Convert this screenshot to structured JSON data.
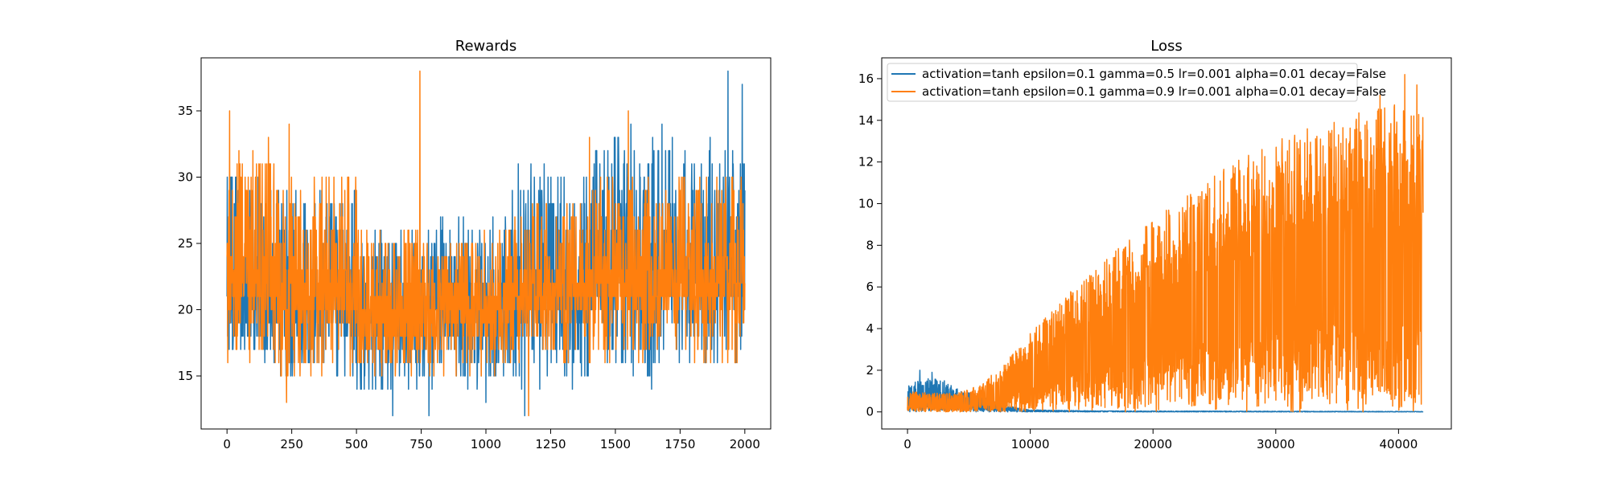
{
  "chart_data": [
    {
      "type": "line",
      "title": "Rewards",
      "xlabel": "",
      "ylabel": "",
      "xlim": [
        -100,
        2100
      ],
      "ylim": [
        11.0,
        39.0
      ],
      "x_ticks": [
        0,
        250,
        500,
        750,
        1000,
        1250,
        1500,
        1750,
        2000
      ],
      "y_ticks": [
        15,
        20,
        25,
        30,
        35
      ],
      "grid": false,
      "legend": "none",
      "series": [
        {
          "color": "#1f77b4",
          "x_range": [
            0,
            2000
          ],
          "segments": [
            {
              "x": [
                0,
                200
              ],
              "low": 16,
              "high": 30,
              "base": 20
            },
            {
              "x": [
                200,
                500
              ],
              "low": 15,
              "high": 29,
              "base": 20
            },
            {
              "x": [
                500,
                800
              ],
              "low": 13,
              "high": 26,
              "base": 19
            },
            {
              "x": [
                800,
                1100
              ],
              "low": 14,
              "high": 27,
              "base": 20
            },
            {
              "x": [
                1100,
                1400
              ],
              "low": 14,
              "high": 31,
              "base": 21
            },
            {
              "x": [
                1400,
                1700
              ],
              "low": 15,
              "high": 33,
              "base": 22
            },
            {
              "x": [
                1700,
                2000
              ],
              "low": 16,
              "high": 33,
              "base": 22
            }
          ],
          "peaks": [
            [
              1935,
              38
            ],
            [
              1990,
              37
            ],
            [
              1560,
              34
            ],
            [
              1680,
              34
            ],
            [
              1510,
              33
            ],
            [
              640,
              12
            ],
            [
              780,
              12
            ],
            [
              1000,
              13
            ],
            [
              1640,
              14
            ],
            [
              1150,
              12
            ]
          ]
        },
        {
          "color": "#ff7f0e",
          "x_range": [
            0,
            2000
          ],
          "segments": [
            {
              "x": [
                0,
                200
              ],
              "low": 16,
              "high": 32,
              "base": 22
            },
            {
              "x": [
                200,
                500
              ],
              "low": 15,
              "high": 30,
              "base": 21
            },
            {
              "x": [
                500,
                800
              ],
              "low": 15,
              "high": 26,
              "base": 19
            },
            {
              "x": [
                800,
                1100
              ],
              "low": 15,
              "high": 26,
              "base": 20
            },
            {
              "x": [
                1100,
                1400
              ],
              "low": 16,
              "high": 28,
              "base": 21
            },
            {
              "x": [
                1400,
                1700
              ],
              "low": 16,
              "high": 30,
              "base": 22
            },
            {
              "x": [
                1700,
                2000
              ],
              "low": 16,
              "high": 30,
              "base": 22
            }
          ],
          "peaks": [
            [
              10,
              35
            ],
            [
              745,
              38
            ],
            [
              240,
              34
            ],
            [
              1550,
              35
            ],
            [
              1400,
              33
            ],
            [
              160,
              33
            ],
            [
              1165,
              12
            ],
            [
              230,
              13
            ]
          ]
        }
      ]
    },
    {
      "type": "line",
      "title": "Loss",
      "xlabel": "",
      "ylabel": "",
      "xlim": [
        -2100,
        44300
      ],
      "ylim": [
        -0.82,
        17.0
      ],
      "x_ticks": [
        0,
        10000,
        20000,
        30000,
        40000
      ],
      "y_ticks": [
        0,
        2,
        4,
        6,
        8,
        10,
        12,
        14,
        16
      ],
      "grid": false,
      "legend": "top-left",
      "series": [
        {
          "name": "activation=tanh epsilon=0.1 gamma=0.5 lr=0.001 alpha=0.01 decay=False",
          "color": "#1f77b4",
          "x_range": [
            0,
            42000
          ],
          "envelope": [
            [
              0,
              1.3
            ],
            [
              1500,
              1.7
            ],
            [
              3000,
              1.5
            ],
            [
              4500,
              1.0
            ],
            [
              6000,
              0.8
            ],
            [
              8000,
              0.3
            ],
            [
              10000,
              0.1
            ],
            [
              15000,
              0.05
            ],
            [
              42000,
              0.02
            ]
          ],
          "peaks": [
            [
              1000,
              2.0
            ],
            [
              2000,
              1.9
            ]
          ]
        },
        {
          "name": "activation=tanh epsilon=0.1 gamma=0.9 lr=0.001 alpha=0.01 decay=False",
          "color": "#ff7f0e",
          "x_range": [
            0,
            42000
          ],
          "envelope": [
            [
              0,
              1.0
            ],
            [
              2000,
              0.9
            ],
            [
              4000,
              0.9
            ],
            [
              6000,
              1.3
            ],
            [
              8000,
              2.4
            ],
            [
              10000,
              3.8
            ],
            [
              12000,
              5.0
            ],
            [
              14000,
              6.2
            ],
            [
              16000,
              7.2
            ],
            [
              18000,
              8.3
            ],
            [
              20000,
              9.2
            ],
            [
              22000,
              10.1
            ],
            [
              24000,
              10.9
            ],
            [
              26000,
              11.8
            ],
            [
              28000,
              12.4
            ],
            [
              30000,
              13.0
            ],
            [
              32000,
              13.5
            ],
            [
              34000,
              13.9
            ],
            [
              36000,
              14.3
            ],
            [
              38000,
              14.5
            ],
            [
              40000,
              14.8
            ],
            [
              42000,
              14.2
            ]
          ],
          "peaks": [
            [
              40500,
              16.2
            ],
            [
              41500,
              15.7
            ],
            [
              38500,
              15.2
            ]
          ]
        }
      ]
    }
  ]
}
